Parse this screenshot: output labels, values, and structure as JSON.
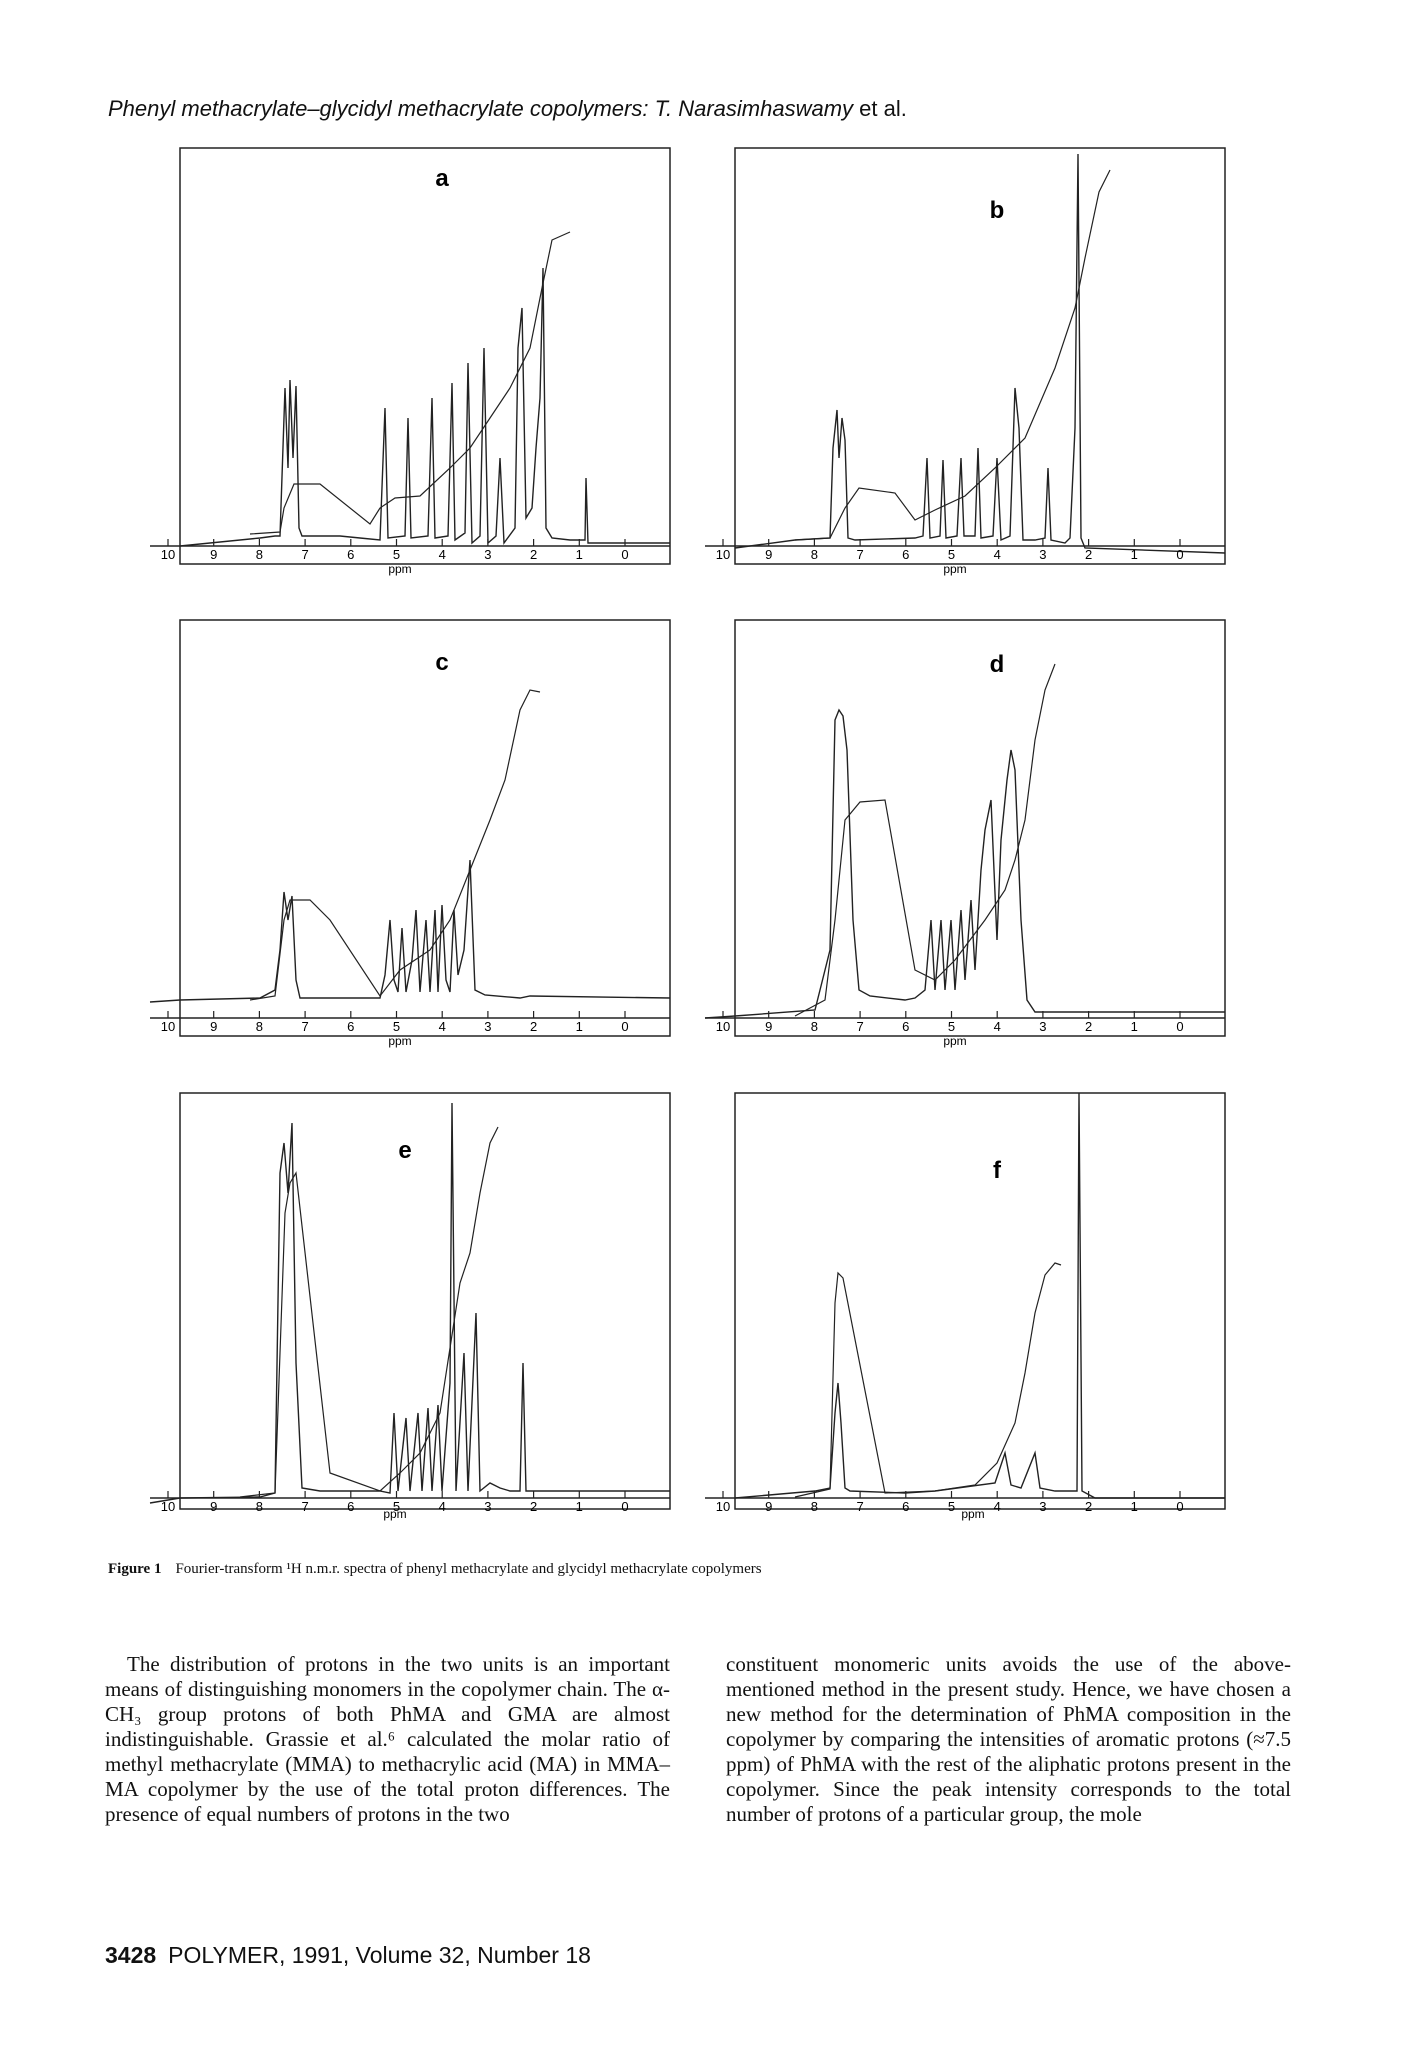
{
  "header": {
    "title_italic": "Phenyl methacrylate–glycidyl methacrylate copolymers: T. Narasimhaswamy",
    "title_plain": " et al."
  },
  "figure": {
    "axis_unit": "ppm",
    "axis_ticks": [
      "10",
      "9",
      "8",
      "7",
      "6",
      "5",
      "4",
      "3",
      "2",
      "1",
      "0"
    ],
    "panels": [
      {
        "letter": "a"
      },
      {
        "letter": "b"
      },
      {
        "letter": "c"
      },
      {
        "letter": "d"
      },
      {
        "letter": "e"
      },
      {
        "letter": "f"
      }
    ],
    "caption_label": "Figure 1",
    "caption_text": "Fourier-transform ¹H n.m.r. spectra of phenyl methacrylate and glycidyl methacrylate copolymers"
  },
  "body": {
    "left_paragraph": "The distribution of protons in the two units is an important means of distinguishing monomers in the copolymer chain. The α-CH₃ group protons of both PhMA and GMA are almost indistinguishable. Grassie et al.⁶ calculated the molar ratio of methyl methacrylate (MMA) to methacrylic acid (MA) in MMA–MA copolymer by the use of the total proton differences. The presence of equal numbers of protons in the two",
    "right_paragraph": "constituent monomeric units avoids the use of the above-mentioned method in the present study. Hence, we have chosen a new method for the determination of PhMA composition in the copolymer by comparing the intensities of aromatic protons (≈7.5 ppm) of PhMA with the rest of the aliphatic protons present in the copolymer. Since the peak intensity corresponds to the total number of protons of a particular group, the mole"
  },
  "footer": {
    "page_number": "3428",
    "journal": "POLYMER, 1991, Volume 32, Number 18"
  }
}
